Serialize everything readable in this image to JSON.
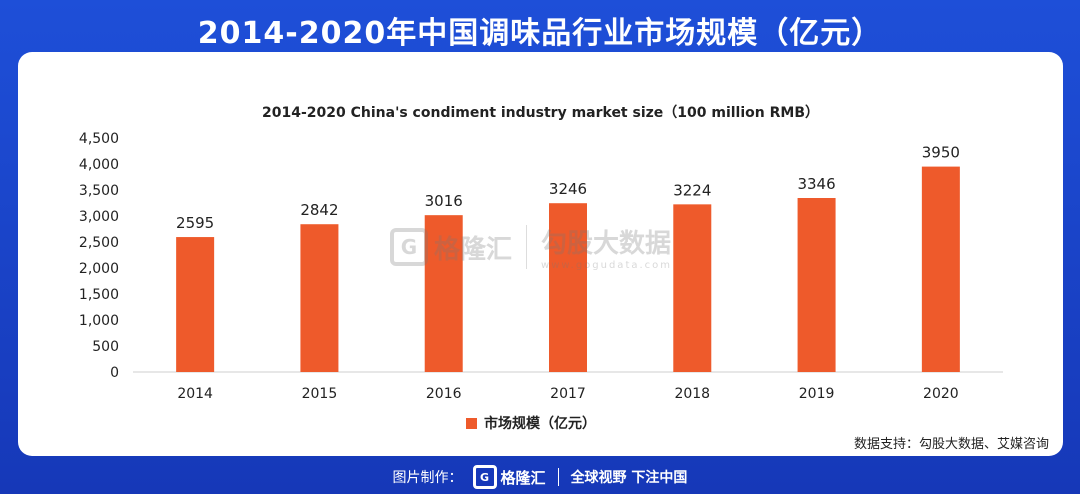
{
  "header": {
    "title": "2014-2020年中国调味品行业市场规模（亿元）"
  },
  "chart_data": {
    "type": "bar",
    "title": "2014-2020 China's condiment industry market size（100 million RMB）",
    "categories": [
      "2014",
      "2015",
      "2016",
      "2017",
      "2018",
      "2019",
      "2020"
    ],
    "series": [
      {
        "name": "市场规模（亿元）",
        "values": [
          2595,
          2842,
          3016,
          3246,
          3224,
          3346,
          3950
        ]
      }
    ],
    "ylim": [
      0,
      4500
    ],
    "yticks": [
      0,
      500,
      1000,
      1500,
      2000,
      2500,
      3000,
      3500,
      4000,
      4500
    ],
    "ytick_labels": [
      "0",
      "500",
      "1,000",
      "1,500",
      "2,000",
      "2,500",
      "3,000",
      "3,500",
      "4,000",
      "4,500"
    ],
    "xlabel": "",
    "ylabel": "",
    "legend_position": "bottom-center",
    "bar_color": "#ee5a2b"
  },
  "source": {
    "text": "数据支持：勾股大数据、艾媒咨询"
  },
  "watermark": {
    "logo_letter": "G",
    "brand": "格隆汇",
    "cn": "勾股大数据",
    "url": "www.gogudata.com"
  },
  "footer": {
    "prefix": "图片制作：",
    "logo_letter": "G",
    "brand": "格隆汇",
    "slogan": "全球视野 下注中国"
  }
}
